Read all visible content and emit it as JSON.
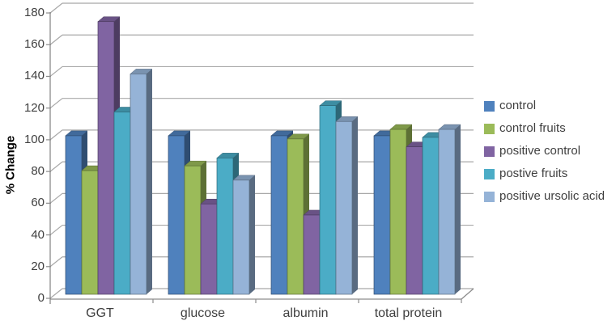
{
  "colors": {
    "gridline": "#a8a8a8",
    "axis": "#8c8c8c",
    "tick_text": "#3f3f3f",
    "axis_title_text": "#000000"
  },
  "chart_data": {
    "type": "bar",
    "style": "3d-clustered-column",
    "title": "",
    "ylabel": "% Change",
    "xlabel": "",
    "categories": [
      "GGT",
      "glucose",
      "albumin",
      "total protein"
    ],
    "series": [
      {
        "name": "control",
        "color": "#4F81BD",
        "values": [
          100,
          100,
          100,
          100
        ]
      },
      {
        "name": "control fruits",
        "color": "#9BBB59",
        "values": [
          78,
          81,
          98,
          104
        ]
      },
      {
        "name": "positive control",
        "color": "#8064A2",
        "values": [
          172,
          57,
          50,
          93
        ]
      },
      {
        "name": "postive fruits",
        "color": "#4BACC6",
        "values": [
          115,
          86,
          119,
          99
        ]
      },
      {
        "name": "positive ursolic acid",
        "color": "#95B3D7",
        "values": [
          139,
          72,
          109,
          104
        ]
      }
    ],
    "ylim": [
      0,
      180
    ],
    "ytick_step": 20,
    "grid": true,
    "legend_position": "right"
  }
}
